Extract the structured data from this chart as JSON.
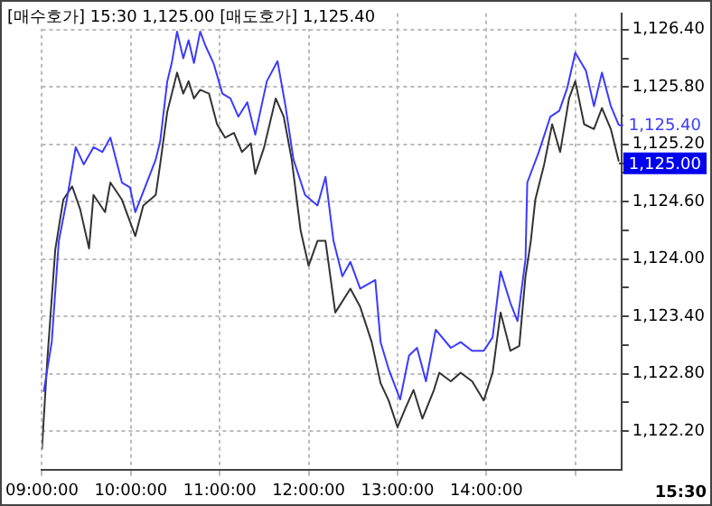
{
  "chart_data": {
    "type": "line",
    "title": "[매수호가] 15:30 1,125.00 [매도호가] 1,125.40",
    "annotations": [
      "15:30",
      {
        "text": "1,125.40",
        "x": 15.49,
        "y": 1125.4
      },
      {
        "text": "1,125.00",
        "x": 15.49,
        "y": 1125.0
      }
    ],
    "xlim": [
      9,
      15.52
    ],
    "ylim": [
      1121.79,
      1126.57
    ],
    "xticks": [
      {
        "value": 9,
        "label": "09:00:00"
      },
      {
        "value": 10,
        "label": "10:00:00"
      },
      {
        "value": 11,
        "label": "11:00:00"
      },
      {
        "value": 12,
        "label": "12:00:00"
      },
      {
        "value": 13,
        "label": "13:00:00"
      },
      {
        "value": 14,
        "label": "14:00:00"
      },
      {
        "value": 15,
        "label": null
      }
    ],
    "yticks": [
      {
        "value": 1122.2,
        "label": "1,122.20"
      },
      {
        "value": 1122.5,
        "label": null
      },
      {
        "value": 1122.8,
        "label": "1,122.80"
      },
      {
        "value": 1123.1,
        "label": null
      },
      {
        "value": 1123.4,
        "label": "1,123.40"
      },
      {
        "value": 1123.7,
        "label": null
      },
      {
        "value": 1124.0,
        "label": "1,124.00"
      },
      {
        "value": 1124.3,
        "label": null
      },
      {
        "value": 1124.6,
        "label": "1,124.60"
      },
      {
        "value": 1124.9,
        "label": null
      },
      {
        "value": 1125.2,
        "label": "1,125.20"
      },
      {
        "value": 1125.5,
        "label": null
      },
      {
        "value": 1125.8,
        "label": "1,125.80"
      },
      {
        "value": 1126.1,
        "label": null
      },
      {
        "value": 1126.4,
        "label": "1,126.40"
      }
    ],
    "grid": true,
    "marker": "none",
    "line_style": "solid",
    "series": [
      {
        "color": "#3b3bff",
        "x": [
          9.02,
          9.11,
          9.19,
          9.28,
          9.38,
          9.47,
          9.58,
          9.68,
          9.77,
          9.9,
          9.99,
          10.05,
          10.18,
          10.28,
          10.33,
          10.41,
          10.46,
          10.52,
          10.59,
          10.65,
          10.71,
          10.78,
          10.84,
          10.93,
          11.03,
          11.12,
          11.21,
          11.31,
          11.4,
          11.53,
          11.65,
          11.74,
          11.83,
          11.96,
          12.1,
          12.19,
          12.28,
          12.38,
          12.47,
          12.58,
          12.75,
          12.81,
          12.9,
          13.03,
          13.13,
          13.22,
          13.32,
          13.43,
          13.6,
          13.71,
          13.84,
          13.97,
          14.07,
          14.16,
          14.27,
          14.35,
          14.44,
          14.46,
          14.59,
          14.72,
          14.82,
          14.91,
          15,
          15.12,
          15.21,
          15.3,
          15.4,
          15.49
        ],
        "values": [
          1122.61,
          1123.13,
          1124.19,
          1124.62,
          1125.17,
          1124.99,
          1125.17,
          1125.12,
          1125.27,
          1124.8,
          1124.75,
          1124.49,
          1124.8,
          1125.04,
          1125.23,
          1125.86,
          1126.05,
          1126.38,
          1126.1,
          1126.29,
          1126.05,
          1126.38,
          1126.23,
          1126.05,
          1125.73,
          1125.68,
          1125.49,
          1125.64,
          1125.3,
          1125.86,
          1126.07,
          1125.6,
          1125.04,
          1124.67,
          1124.56,
          1124.86,
          1124.19,
          1123.82,
          1123.97,
          1123.69,
          1123.78,
          1123.13,
          1122.85,
          1122.53,
          1122.99,
          1123.07,
          1122.72,
          1123.26,
          1123.07,
          1123.13,
          1123.04,
          1123.04,
          1123.18,
          1123.87,
          1123.54,
          1123.35,
          1124.0,
          1124.8,
          1125.12,
          1125.49,
          1125.55,
          1125.79,
          1126.16,
          1125.97,
          1125.6,
          1125.95,
          1125.6,
          1125.4
        ]
      },
      {
        "color": "#333333",
        "x": [
          9,
          9.06,
          9.15,
          9.24,
          9.34,
          9.43,
          9.53,
          9.58,
          9.71,
          9.77,
          9.9,
          10.05,
          10.14,
          10.28,
          10.33,
          10.41,
          10.52,
          10.59,
          10.65,
          10.71,
          10.78,
          10.88,
          10.97,
          11.06,
          11.16,
          11.25,
          11.35,
          11.4,
          11.5,
          11.63,
          11.72,
          11.81,
          11.91,
          12,
          12.1,
          12.19,
          12.3,
          12.47,
          12.58,
          12.71,
          12.81,
          12.9,
          13,
          13.09,
          13.18,
          13.28,
          13.41,
          13.47,
          13.6,
          13.71,
          13.84,
          13.97,
          14.07,
          14.16,
          14.27,
          14.37,
          14.44,
          14.5,
          14.55,
          14.65,
          14.74,
          14.83,
          14.93,
          15,
          15.1,
          15.21,
          15.3,
          15.4,
          15.49
        ],
        "values": [
          1122.01,
          1122.94,
          1124.1,
          1124.62,
          1124.76,
          1124.52,
          1124.11,
          1124.67,
          1124.49,
          1124.8,
          1124.62,
          1124.24,
          1124.56,
          1124.67,
          1124.99,
          1125.54,
          1125.95,
          1125.73,
          1125.86,
          1125.68,
          1125.77,
          1125.73,
          1125.41,
          1125.27,
          1125.32,
          1125.12,
          1125.21,
          1124.89,
          1125.17,
          1125.68,
          1125.49,
          1125.04,
          1124.3,
          1123.93,
          1124.19,
          1124.19,
          1123.44,
          1123.69,
          1123.5,
          1123.13,
          1122.7,
          1122.52,
          1122.24,
          1122.44,
          1122.63,
          1122.33,
          1122.63,
          1122.81,
          1122.72,
          1122.81,
          1122.72,
          1122.52,
          1122.81,
          1123.44,
          1123.04,
          1123.09,
          1123.82,
          1124.19,
          1124.62,
          1124.99,
          1125.41,
          1125.12,
          1125.68,
          1125.86,
          1125.41,
          1125.36,
          1125.58,
          1125.36,
          1125.02
        ]
      }
    ]
  }
}
